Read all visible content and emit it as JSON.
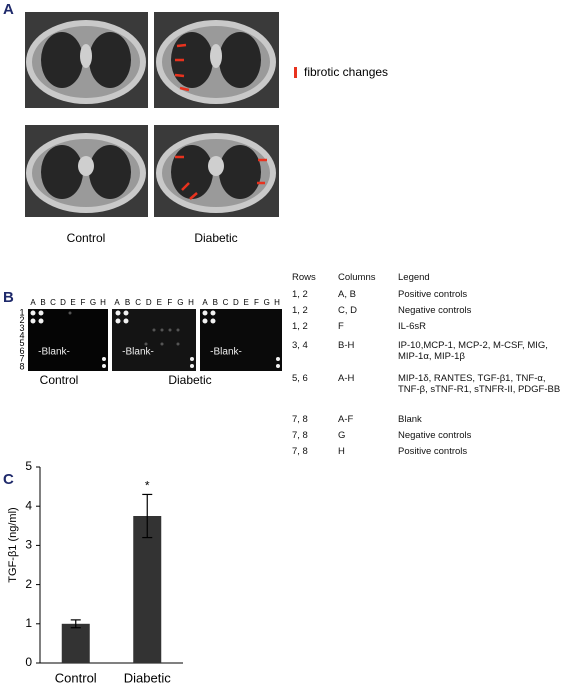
{
  "panel_a": {
    "label": "A",
    "legend": "fibrotic changes",
    "groups": [
      "Control",
      "Diabetic"
    ]
  },
  "panel_b": {
    "label": "B",
    "column_letters": [
      "A",
      "B",
      "C",
      "D",
      "E",
      "F",
      "G",
      "H"
    ],
    "row_numbers": [
      "1",
      "2",
      "3",
      "4",
      "5",
      "6",
      "7",
      "8"
    ],
    "blank_label": "-Blank-",
    "groups": [
      "Control",
      "Diabetic"
    ],
    "table": {
      "header": [
        "Rows",
        "Columns",
        "Legend"
      ],
      "rows": [
        [
          "1, 2",
          "A, B",
          "Positive controls"
        ],
        [
          "1, 2",
          "C, D",
          "Negative controls"
        ],
        [
          "1, 2",
          "F",
          "IL-6sR"
        ],
        [
          "3, 4",
          "B-H",
          "IP-10,MCP-1, MCP-2, M-CSF, MIG, MIP-1α, MIP-1β"
        ],
        [
          "5, 6",
          "A-H",
          "MIP-1δ, RANTES, TGF-β1, TNF-α, TNF-β, sTNF-R1, sTNFR-II, PDGF-BB"
        ],
        [
          "7, 8",
          "A-F",
          "Blank"
        ],
        [
          "7, 8",
          "G",
          "Negative controls"
        ],
        [
          "7, 8",
          "H",
          "Positive controls"
        ]
      ]
    }
  },
  "panel_c": {
    "label": "C"
  },
  "chart_data": {
    "type": "bar",
    "categories": [
      "Control",
      "Diabetic"
    ],
    "values": [
      1,
      3.75
    ],
    "errors": [
      0.1,
      0.55
    ],
    "color": "#333333",
    "ylabel": "TGF-β1 (ng/ml)",
    "annotation": "*",
    "ylim": [
      0,
      5
    ],
    "yticks": [
      0,
      1,
      2,
      3,
      4,
      5
    ]
  }
}
